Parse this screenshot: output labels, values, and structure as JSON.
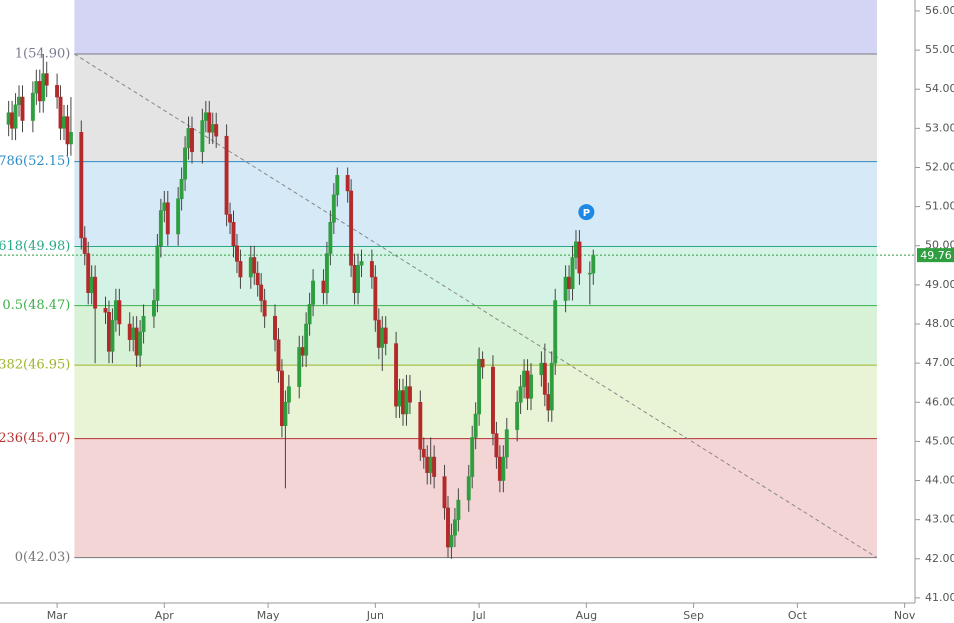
{
  "chart_data": {
    "type": "candlestick",
    "x": [
      -14,
      -13,
      -12,
      -11,
      -10,
      -7,
      -6,
      -5,
      -4,
      -3,
      0,
      1,
      2,
      3,
      4,
      7,
      8,
      9,
      10,
      11,
      14,
      15,
      16,
      17,
      18,
      21,
      22,
      23,
      24,
      25,
      28,
      29,
      30,
      31,
      32,
      35,
      36,
      37,
      38,
      39,
      42,
      43,
      44,
      45,
      46,
      49,
      50,
      51,
      52,
      53,
      56,
      57,
      58,
      59,
      60,
      63,
      64,
      65,
      66,
      67,
      70,
      71,
      72,
      73,
      74,
      77,
      78,
      79,
      80,
      81,
      84,
      85,
      86,
      87,
      88,
      91,
      92,
      93,
      94,
      95,
      98,
      99,
      100,
      101,
      102,
      105,
      106,
      107,
      108,
      109,
      112,
      113,
      114,
      115,
      116,
      119,
      120,
      121,
      122,
      123,
      126,
      127,
      128,
      129,
      130,
      133,
      134,
      135,
      136,
      137,
      140,
      141,
      142,
      143,
      144,
      147,
      148,
      149,
      150,
      151,
      154,
      155
    ],
    "open": [
      53.1,
      53.4,
      53.0,
      53.6,
      53.8,
      53.2,
      53.9,
      54.2,
      53.7,
      54.4,
      54.1,
      53.8,
      53.0,
      53.3,
      52.6,
      52.9,
      50.2,
      49.8,
      48.8,
      49.2,
      48.4,
      48.3,
      47.3,
      48.1,
      48.6,
      48.0,
      47.6,
      47.9,
      47.2,
      47.8,
      48.2,
      48.6,
      50.0,
      50.9,
      51.1,
      50.3,
      51.2,
      51.7,
      52.5,
      53.0,
      52.4,
      53.2,
      53.4,
      52.9,
      53.1,
      52.8,
      50.8,
      50.6,
      50.0,
      49.6,
      49.2,
      49.7,
      49.3,
      49.0,
      48.6,
      48.2,
      47.6,
      46.8,
      45.4,
      46.0,
      46.4,
      47.4,
      47.2,
      48.0,
      48.5,
      49.1,
      48.8,
      49.8,
      50.6,
      51.3,
      51.8,
      51.4,
      49.5,
      48.8,
      49.5,
      49.6,
      49.2,
      48.1,
      47.4,
      47.9,
      47.5,
      45.9,
      46.3,
      45.7,
      46.4,
      46.0,
      44.8,
      44.6,
      44.2,
      44.6,
      44.1,
      43.3,
      42.3,
      42.6,
      43.0,
      43.5,
      44.1,
      45.1,
      45.7,
      47.1,
      46.9,
      45.2,
      44.6,
      44.0,
      44.6,
      45.3,
      46.0,
      46.4,
      46.8,
      46.1,
      46.7,
      47.0,
      46.2,
      45.8,
      47.0,
      48.6,
      49.2,
      48.9,
      49.7,
      50.1,
      49.3,
      49.3
    ],
    "high": [
      53.7,
      53.7,
      53.9,
      54.1,
      54.1,
      54.2,
      54.5,
      54.5,
      54.9,
      54.7,
      54.4,
      54.1,
      53.6,
      53.6,
      53.8,
      53.2,
      50.5,
      50.1,
      49.5,
      49.5,
      48.7,
      48.6,
      48.4,
      48.9,
      48.9,
      48.3,
      48.2,
      48.2,
      48.1,
      48.5,
      48.9,
      50.3,
      51.2,
      51.4,
      51.4,
      51.5,
      52.0,
      52.8,
      53.3,
      53.3,
      53.5,
      53.7,
      53.7,
      53.4,
      53.4,
      53.1,
      51.1,
      50.9,
      50.3,
      49.9,
      50.0,
      50.0,
      49.6,
      49.3,
      48.9,
      48.5,
      47.9,
      47.1,
      46.3,
      46.7,
      47.7,
      47.7,
      48.3,
      48.8,
      49.4,
      49.4,
      50.1,
      50.9,
      51.6,
      52.0,
      52.0,
      51.7,
      49.8,
      49.8,
      49.9,
      49.9,
      49.5,
      48.4,
      48.2,
      48.2,
      47.8,
      46.6,
      46.6,
      46.7,
      46.7,
      46.3,
      45.1,
      44.9,
      45.1,
      44.9,
      44.4,
      43.6,
      42.9,
      43.3,
      43.8,
      44.4,
      45.4,
      46.0,
      47.4,
      47.3,
      47.2,
      45.5,
      44.9,
      44.9,
      45.6,
      46.3,
      46.7,
      47.1,
      47.1,
      47.0,
      47.3,
      47.5,
      46.5,
      47.3,
      48.9,
      49.5,
      49.5,
      50.0,
      50.4,
      50.4,
      49.6,
      49.9
    ],
    "low": [
      52.8,
      52.7,
      52.7,
      53.3,
      52.9,
      52.9,
      53.6,
      53.4,
      53.4,
      53.8,
      53.5,
      52.7,
      52.7,
      52.3,
      52.3,
      49.9,
      49.5,
      48.5,
      48.5,
      47.0,
      48.0,
      47.0,
      47.0,
      47.8,
      47.7,
      47.3,
      47.3,
      46.9,
      46.9,
      47.5,
      47.9,
      48.3,
      49.7,
      50.6,
      50.0,
      50.0,
      50.9,
      51.4,
      52.2,
      52.1,
      52.1,
      52.9,
      52.6,
      52.6,
      52.5,
      50.5,
      50.3,
      49.7,
      49.3,
      48.9,
      48.9,
      49.0,
      48.7,
      48.3,
      47.9,
      47.3,
      46.5,
      45.1,
      43.8,
      45.7,
      46.1,
      46.9,
      46.9,
      47.7,
      48.2,
      48.5,
      48.5,
      49.5,
      50.3,
      51.0,
      51.1,
      49.2,
      48.5,
      48.5,
      49.2,
      48.9,
      47.8,
      47.1,
      46.8,
      47.2,
      45.6,
      45.6,
      45.4,
      45.4,
      45.7,
      44.5,
      44.3,
      43.9,
      43.9,
      43.8,
      43.0,
      42.03,
      42.0,
      42.3,
      42.7,
      43.2,
      43.8,
      44.8,
      45.4,
      46.6,
      44.9,
      44.3,
      43.7,
      43.7,
      44.3,
      45.0,
      45.7,
      46.1,
      45.8,
      45.8,
      46.4,
      45.9,
      45.5,
      45.5,
      46.7,
      48.3,
      48.6,
      48.6,
      49.4,
      49.0,
      48.5,
      49.0
    ],
    "close": [
      53.4,
      53.0,
      53.6,
      53.8,
      53.2,
      53.9,
      54.2,
      53.7,
      54.4,
      54.1,
      53.8,
      53.0,
      53.3,
      52.6,
      52.9,
      50.2,
      49.8,
      48.8,
      49.2,
      48.4,
      48.3,
      47.3,
      48.1,
      48.6,
      48.0,
      47.6,
      47.9,
      47.2,
      47.8,
      48.2,
      48.6,
      50.0,
      50.9,
      51.1,
      50.3,
      51.2,
      51.7,
      52.5,
      53.0,
      52.4,
      53.2,
      53.4,
      52.9,
      53.1,
      52.8,
      50.8,
      50.6,
      50.0,
      49.6,
      49.2,
      49.7,
      49.3,
      49.0,
      48.6,
      48.2,
      47.6,
      46.8,
      45.4,
      46.0,
      46.4,
      47.4,
      47.2,
      48.0,
      48.5,
      49.1,
      48.8,
      49.8,
      50.6,
      51.3,
      51.8,
      51.4,
      49.5,
      48.8,
      49.5,
      49.6,
      49.2,
      48.1,
      47.4,
      47.9,
      47.5,
      45.9,
      46.3,
      45.7,
      46.4,
      46.0,
      44.8,
      44.6,
      44.2,
      44.6,
      44.1,
      43.3,
      42.3,
      42.6,
      43.0,
      43.5,
      44.1,
      45.1,
      45.7,
      47.1,
      46.9,
      45.2,
      44.6,
      44.0,
      44.6,
      45.3,
      46.0,
      46.4,
      46.8,
      46.1,
      46.7,
      47.0,
      46.2,
      45.8,
      47.0,
      48.6,
      49.2,
      48.9,
      49.7,
      50.1,
      49.3,
      49.3,
      49.76
    ],
    "up_color": "#2e9e3e",
    "down_color": "#b22a2a",
    "xlim": [
      -16.5,
      248
    ],
    "xticks": [
      {
        "value": 0,
        "label": "Mar"
      },
      {
        "value": 31,
        "label": "Apr"
      },
      {
        "value": 61,
        "label": "May"
      },
      {
        "value": 92,
        "label": "Jun"
      },
      {
        "value": 122,
        "label": "Jul"
      },
      {
        "value": 153,
        "label": "Aug"
      },
      {
        "value": 184,
        "label": "Sep"
      },
      {
        "value": 214,
        "label": "Oct"
      },
      {
        "value": 245,
        "label": "Nov"
      }
    ],
    "ylim": [
      40.87,
      56.28
    ],
    "yticks": [
      {
        "value": 41,
        "label": "41.00"
      },
      {
        "value": 42,
        "label": "42.00"
      },
      {
        "value": 43,
        "label": "43.00"
      },
      {
        "value": 44,
        "label": "44.00"
      },
      {
        "value": 45,
        "label": "45.00"
      },
      {
        "value": 46,
        "label": "46.00"
      },
      {
        "value": 47,
        "label": "47.00"
      },
      {
        "value": 48,
        "label": "48.00"
      },
      {
        "value": 49,
        "label": "49.00"
      },
      {
        "value": 50,
        "label": "50.00"
      },
      {
        "value": 51,
        "label": "51.00"
      },
      {
        "value": 52,
        "label": "52.00"
      },
      {
        "value": 53,
        "label": "53.00"
      },
      {
        "value": 54,
        "label": "54.00"
      },
      {
        "value": 55,
        "label": "55.00"
      },
      {
        "value": 56,
        "label": "56.00"
      }
    ],
    "fib_top_fill": "#d4d4f4",
    "fib_levels": [
      {
        "value": 54.9,
        "label": "1(54.90)",
        "color": "#7a7a90",
        "fill": "#e4e4e4"
      },
      {
        "value": 52.15,
        "label": "786(52.15)",
        "color": "#2b8cc4",
        "fill": "#d5e9f6"
      },
      {
        "value": 49.98,
        "label": "618(49.98)",
        "color": "#28a888",
        "fill": "#d4f3e6"
      },
      {
        "value": 48.47,
        "label": "0.5(48.47)",
        "color": "#3cb04a",
        "fill": "#d8f2d8"
      },
      {
        "value": 46.95,
        "label": "382(46.95)",
        "color": "#9cb52a",
        "fill": "#e9f4d6"
      },
      {
        "value": 45.07,
        "label": "236(45.07)",
        "color": "#b83232",
        "fill": "#f3d5d5"
      },
      {
        "value": 42.03,
        "label": "0(42.03)",
        "color": "#777777"
      }
    ],
    "fib_x": [
      5,
      237
    ],
    "trendline": {
      "x": [
        5,
        237
      ],
      "y": [
        54.9,
        42.03
      ],
      "color": "#888888"
    },
    "last_price": {
      "value": 49.76,
      "label": "49.76",
      "color": "#2e9e3e"
    },
    "marker": {
      "x": 153,
      "y": 50.86,
      "label": "P",
      "color": "#1e88e5"
    }
  }
}
